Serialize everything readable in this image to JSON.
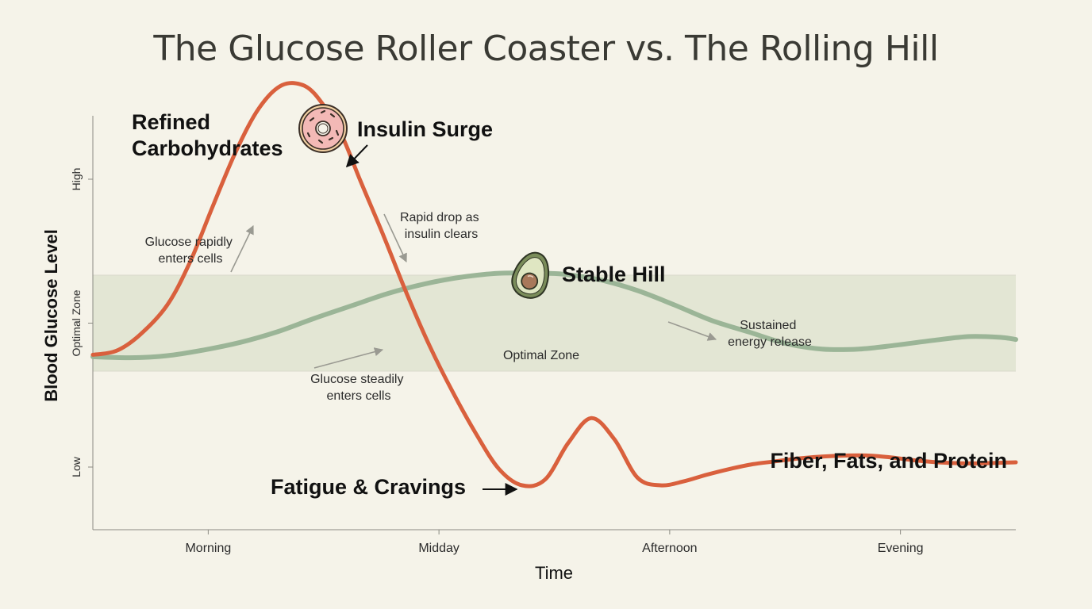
{
  "chart_data": {
    "type": "line",
    "title": "The Glucose Roller Coaster vs. The Rolling Hill",
    "xlabel": "Time",
    "ylabel": "Blood Glucose Level",
    "xlim": [
      0,
      4
    ],
    "ylim": [
      0,
      5
    ],
    "x_ticks": [
      {
        "value": 0.5,
        "label": "Morning"
      },
      {
        "value": 1.5,
        "label": "Midday"
      },
      {
        "value": 2.5,
        "label": "Afternoon"
      },
      {
        "value": 3.5,
        "label": "Evening"
      }
    ],
    "y_ticks": [
      {
        "value": 1,
        "label": "Low"
      },
      {
        "value": 2.5,
        "label": "Optimal Zone"
      },
      {
        "value": 4,
        "label": "High"
      }
    ],
    "y_gridlines": [
      2,
      3
    ],
    "optimal_zone": {
      "range": [
        2,
        3
      ],
      "label": "Optimal Zone",
      "color": "#e3e6d4"
    },
    "series": [
      {
        "name": "Refined Carbohydrates",
        "color": "#d9603d",
        "x": [
          0,
          0.1,
          0.2,
          0.32,
          0.42,
          0.52,
          0.62,
          0.72,
          0.82,
          0.92,
          1.0,
          1.08,
          1.16,
          1.26,
          1.36,
          1.46,
          1.56,
          1.66,
          1.76,
          1.86,
          1.96,
          2.06,
          2.16,
          2.26,
          2.36,
          2.46,
          2.56,
          2.66,
          2.76,
          2.86,
          2.96,
          3.06,
          3.16,
          3.26,
          3.36,
          3.46,
          3.56,
          3.66,
          3.76,
          3.86,
          4.0
        ],
        "y": [
          2.17,
          2.21,
          2.37,
          2.68,
          3.13,
          3.72,
          4.29,
          4.74,
          4.98,
          4.97,
          4.77,
          4.45,
          3.98,
          3.41,
          2.81,
          2.26,
          1.78,
          1.35,
          0.98,
          0.81,
          0.87,
          1.25,
          1.51,
          1.29,
          0.89,
          0.81,
          0.85,
          0.92,
          0.98,
          1.03,
          1.06,
          1.09,
          1.11,
          1.12,
          1.12,
          1.1,
          1.07,
          1.05,
          1.04,
          1.04,
          1.05
        ]
      },
      {
        "name": "Fiber, Fats, and Protein",
        "color": "#9bb597",
        "x": [
          0,
          0.16,
          0.32,
          0.48,
          0.64,
          0.8,
          0.96,
          1.12,
          1.28,
          1.44,
          1.6,
          1.76,
          1.92,
          2.04,
          2.2,
          2.36,
          2.52,
          2.68,
          2.84,
          3.0,
          3.16,
          3.32,
          3.48,
          3.64,
          3.8,
          3.94,
          4.0
        ],
        "y": [
          2.15,
          2.14,
          2.16,
          2.22,
          2.3,
          2.41,
          2.55,
          2.68,
          2.81,
          2.91,
          2.98,
          3.02,
          3.02,
          3.01,
          2.95,
          2.84,
          2.69,
          2.53,
          2.41,
          2.29,
          2.23,
          2.23,
          2.27,
          2.32,
          2.36,
          2.35,
          2.33
        ]
      }
    ],
    "annotations": {
      "refined_carbs": [
        "Refined",
        "Carbohydrates"
      ],
      "insulin_surge": "Insulin Surge",
      "glucose_rapidly": [
        "Glucose rapidly",
        "enters cells"
      ],
      "rapid_drop": [
        "Rapid drop as",
        "insulin clears"
      ],
      "stable_hill": "Stable Hill",
      "sustained": [
        "Sustained",
        "energy release"
      ],
      "glucose_steadily": [
        "Glucose steadily",
        "enters cells"
      ],
      "fatigue": "Fatigue & Cravings",
      "fiber_fats": "Fiber, Fats, and Protein"
    },
    "icons": {
      "donut": "donut-icon",
      "avocado": "avocado-icon"
    }
  }
}
